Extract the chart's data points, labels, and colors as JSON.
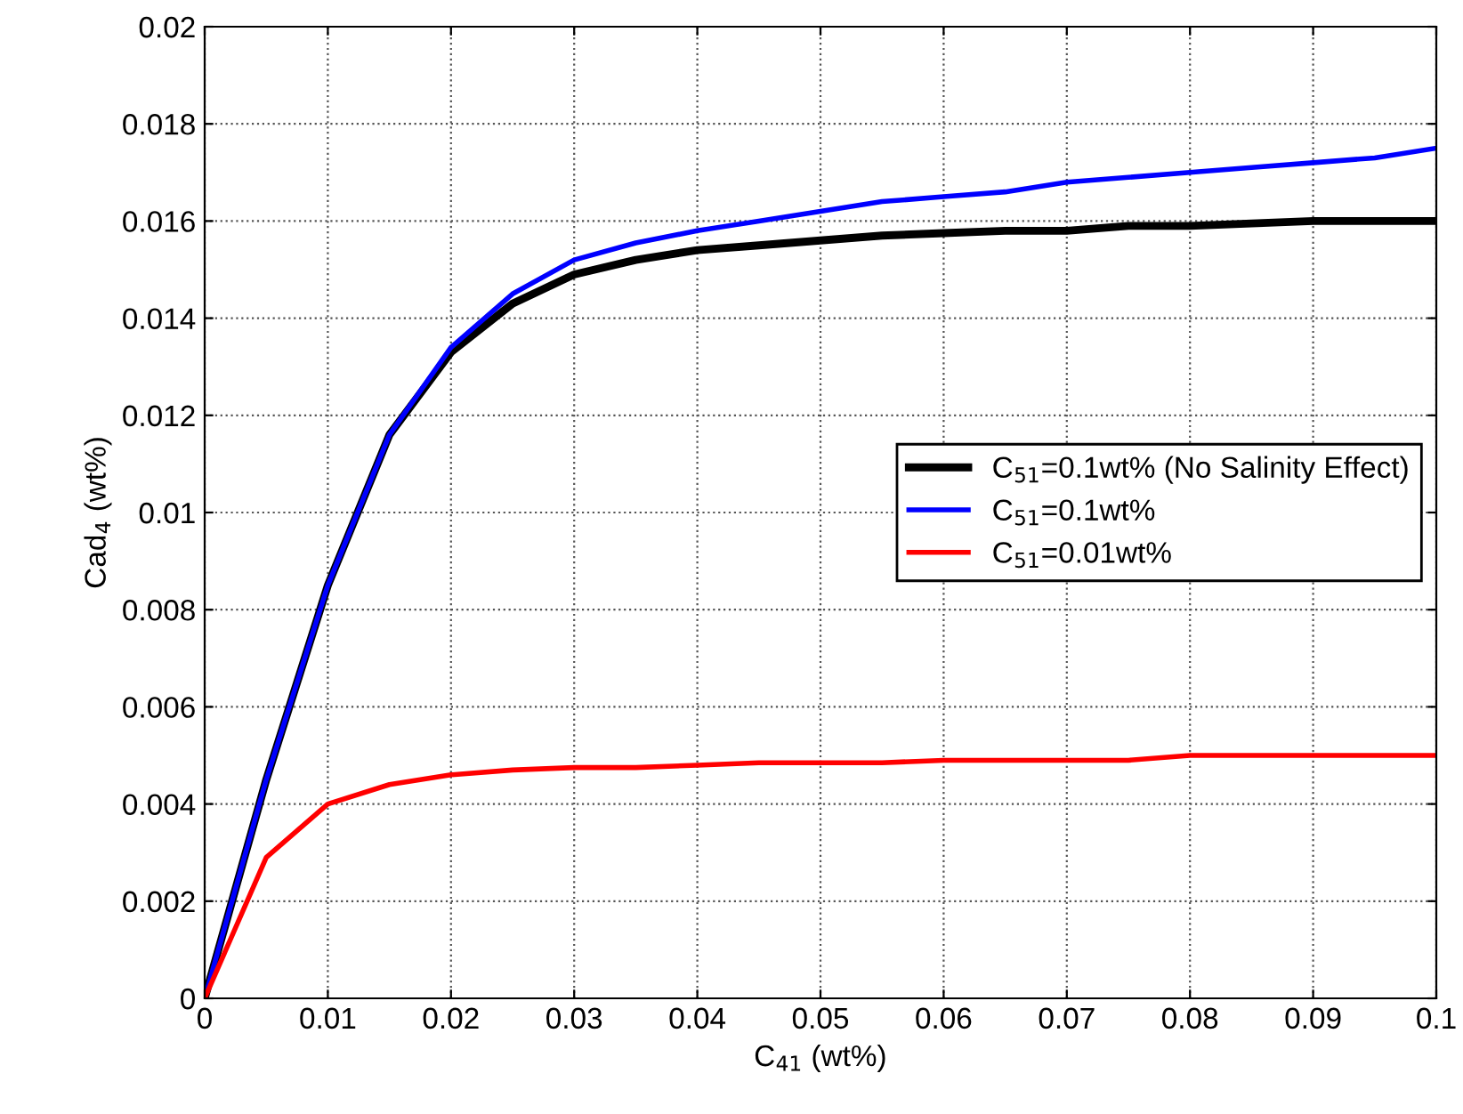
{
  "chart_data": {
    "type": "line",
    "xlabel": "C$_{41}$ (wt%)",
    "ylabel": "Cad$_{4}$ (wt%)",
    "x": [
      0,
      0.005,
      0.01,
      0.015,
      0.02,
      0.025,
      0.03,
      0.035,
      0.04,
      0.045,
      0.05,
      0.055,
      0.06,
      0.065,
      0.07,
      0.075,
      0.08,
      0.085,
      0.09,
      0.095,
      0.1
    ],
    "series": [
      {
        "name": "C$_{51}$=0.1wt% (No Salinity Effect)",
        "color": "#000000",
        "values": [
          0,
          0.0045,
          0.0085,
          0.0116,
          0.0133,
          0.0143,
          0.0149,
          0.0152,
          0.0154,
          0.0155,
          0.0156,
          0.0157,
          0.01575,
          0.0158,
          0.0158,
          0.0159,
          0.0159,
          0.01595,
          0.016,
          0.016,
          0.016
        ]
      },
      {
        "name": "C$_{51}$=0.1wt%",
        "color": "#0000ff",
        "values": [
          0,
          0.0045,
          0.0085,
          0.0116,
          0.0134,
          0.0145,
          0.0152,
          0.01555,
          0.0158,
          0.016,
          0.0162,
          0.0164,
          0.0165,
          0.0166,
          0.0168,
          0.0169,
          0.017,
          0.0171,
          0.0172,
          0.0173,
          0.0175
        ]
      },
      {
        "name": "C$_{51}$=0.01wt%",
        "color": "#ff0000",
        "values": [
          0,
          0.0029,
          0.004,
          0.0044,
          0.0046,
          0.0047,
          0.00475,
          0.00475,
          0.0048,
          0.00485,
          0.00485,
          0.00485,
          0.0049,
          0.0049,
          0.0049,
          0.0049,
          0.005,
          0.005,
          0.005,
          0.005,
          0.005
        ]
      }
    ],
    "xlim": [
      0,
      0.1
    ],
    "xticks": [
      0,
      0.01,
      0.02,
      0.03,
      0.04,
      0.05,
      0.06,
      0.07,
      0.08,
      0.09,
      0.1
    ],
    "ylim": [
      0,
      0.02
    ],
    "yticks": [
      0,
      0.002,
      0.004,
      0.006,
      0.008,
      0.01,
      0.012,
      0.014,
      0.016,
      0.018,
      0.02
    ],
    "grid": true,
    "legend": "center right",
    "line_style": "solid"
  }
}
